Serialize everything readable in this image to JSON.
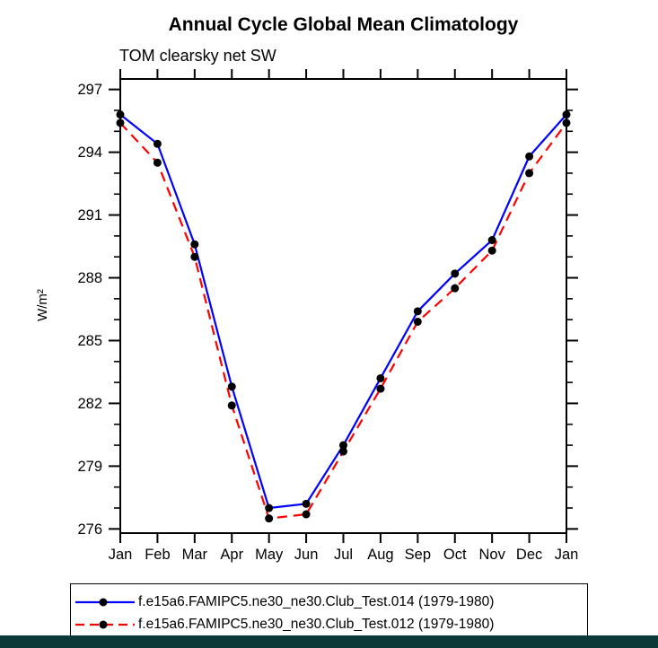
{
  "page": {
    "bottom_bar_color": "#0b3938"
  },
  "chart_data": {
    "type": "line",
    "title": "Annual Cycle Global Mean Climatology",
    "subtitle": "TOM clearsky net SW",
    "ylabel": "W/m²",
    "xlabel": "",
    "categories": [
      "Jan",
      "Feb",
      "Mar",
      "Apr",
      "May",
      "Jun",
      "Jul",
      "Aug",
      "Sep",
      "Oct",
      "Nov",
      "Dec",
      "Jan"
    ],
    "series": [
      {
        "name": "f.e15a6.FAMIPC5.ne30_ne30.Club_Test.014 (1979-1980)",
        "color": "#0000ff",
        "line_style": "solid",
        "marker": "filled-circle",
        "marker_color": "#000000",
        "values": [
          295.8,
          294.4,
          289.6,
          282.8,
          277.0,
          277.2,
          280.0,
          283.2,
          286.4,
          288.2,
          289.8,
          293.8,
          295.8
        ]
      },
      {
        "name": "f.e15a6.FAMIPC5.ne30_ne30.Club_Test.012 (1979-1980)",
        "color": "#ff0000",
        "line_style": "dashed",
        "marker": "filled-circle",
        "marker_color": "#000000",
        "values": [
          295.4,
          293.5,
          289.0,
          281.9,
          276.5,
          276.7,
          279.7,
          282.7,
          285.9,
          287.5,
          289.3,
          293.0,
          295.4
        ]
      }
    ],
    "ylim": [
      275.8,
      297.5
    ],
    "yticks_major": [
      276,
      279,
      282,
      285,
      288,
      291,
      294,
      297
    ],
    "ytick_minor_step": 1,
    "grid": false,
    "frame": true,
    "legend_position": "bottom"
  }
}
